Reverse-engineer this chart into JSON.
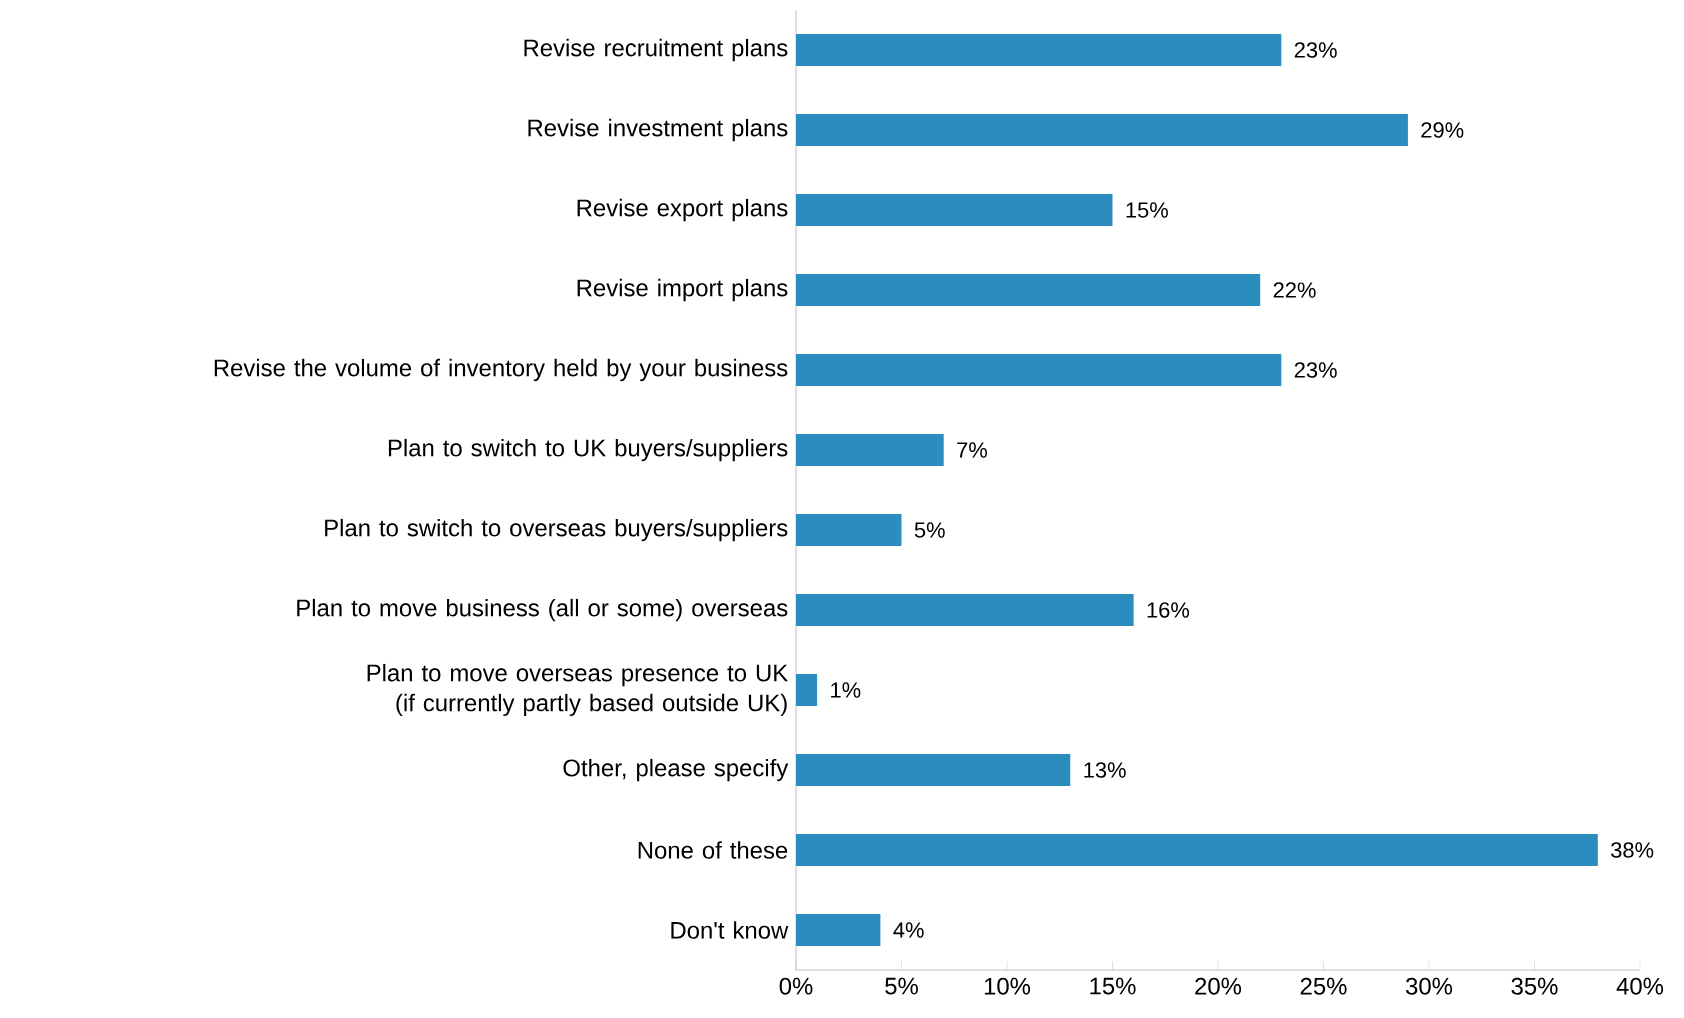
{
  "chart_data": {
    "type": "bar",
    "orientation": "horizontal",
    "categories": [
      "Revise recruitment plans",
      "Revise investment plans",
      "Revise export plans",
      "Revise import plans",
      "Revise the volume of inventory held by your business",
      "Plan to switch to UK buyers/suppliers",
      "Plan to switch to overseas buyers/suppliers",
      "Plan to move business (all or some) overseas",
      "Plan to move overseas presence to UK (if currently partly based outside UK)",
      "Other, please specify",
      "None of these",
      "Don't know"
    ],
    "values": [
      23,
      29,
      15,
      22,
      23,
      7,
      5,
      16,
      1,
      13,
      38,
      4
    ],
    "value_labels": [
      "23%",
      "29%",
      "15%",
      "22%",
      "23%",
      "7%",
      "5%",
      "16%",
      "1%",
      "13%",
      "38%",
      "4%"
    ],
    "color": "#2b8cbe",
    "xlim": [
      0,
      40
    ],
    "xticks": [
      {
        "value": 0,
        "label": "0%"
      },
      {
        "value": 5,
        "label": "5%"
      },
      {
        "value": 10,
        "label": "10%"
      },
      {
        "value": 15,
        "label": "15%"
      },
      {
        "value": 20,
        "label": "20%"
      },
      {
        "value": 25,
        "label": "25%"
      },
      {
        "value": 30,
        "label": "30%"
      },
      {
        "value": 35,
        "label": "35%"
      },
      {
        "value": 40,
        "label": "40%"
      }
    ],
    "grid": false
  }
}
